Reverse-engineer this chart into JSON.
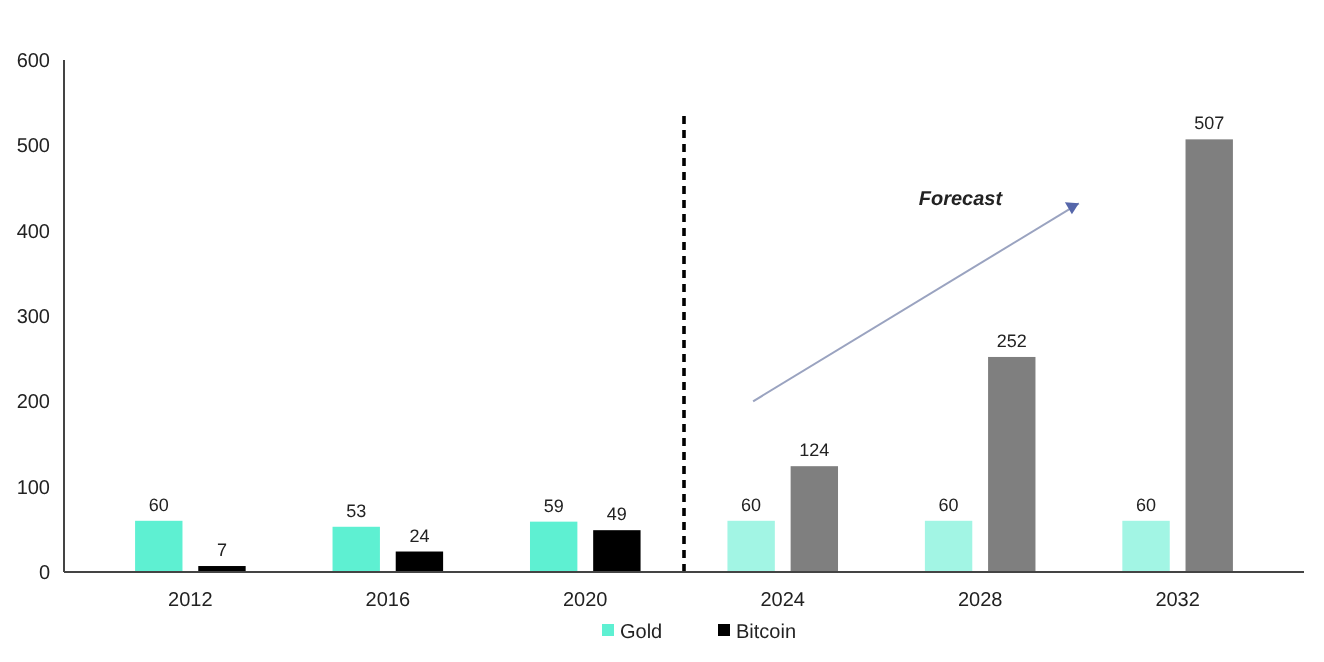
{
  "chart_data": {
    "type": "bar",
    "categories": [
      "2012",
      "2016",
      "2020",
      "2024",
      "2028",
      "2032"
    ],
    "series": [
      {
        "name": "Gold",
        "color": "#5ef0d2",
        "colors": [
          "#5ef0d2",
          "#5ef0d2",
          "#5ef0d2",
          "#a2f5e4",
          "#a2f5e4",
          "#a2f5e4"
        ],
        "values": [
          60,
          53,
          59,
          60,
          60,
          60
        ]
      },
      {
        "name": "Bitcoin",
        "color": "#000000",
        "colors": [
          "#000000",
          "#000000",
          "#000000",
          "#7f7f7f",
          "#7f7f7f",
          "#7f7f7f"
        ],
        "values": [
          7,
          24,
          49,
          124,
          252,
          507
        ]
      }
    ],
    "ylim": [
      0,
      600
    ],
    "yticks": [
      0,
      100,
      200,
      300,
      400,
      500,
      600
    ],
    "data_labels": true,
    "grid": false,
    "legend": "bottom",
    "annotations": [
      "Forecast"
    ]
  }
}
